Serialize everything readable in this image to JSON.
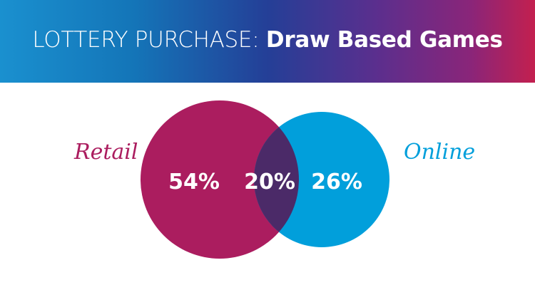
{
  "header": {
    "title_light": "LOTTERY PURCHASE: ",
    "title_bold": "Draw Based Games"
  },
  "venn": {
    "sets": [
      {
        "name": "Retail",
        "value_label": "54%",
        "color": "#ab1d5f"
      },
      {
        "name": "Online",
        "value_label": "26%",
        "color": "#019fdb"
      }
    ],
    "overlap": {
      "value_label": "20%",
      "color": "#4b2a68"
    }
  }
}
